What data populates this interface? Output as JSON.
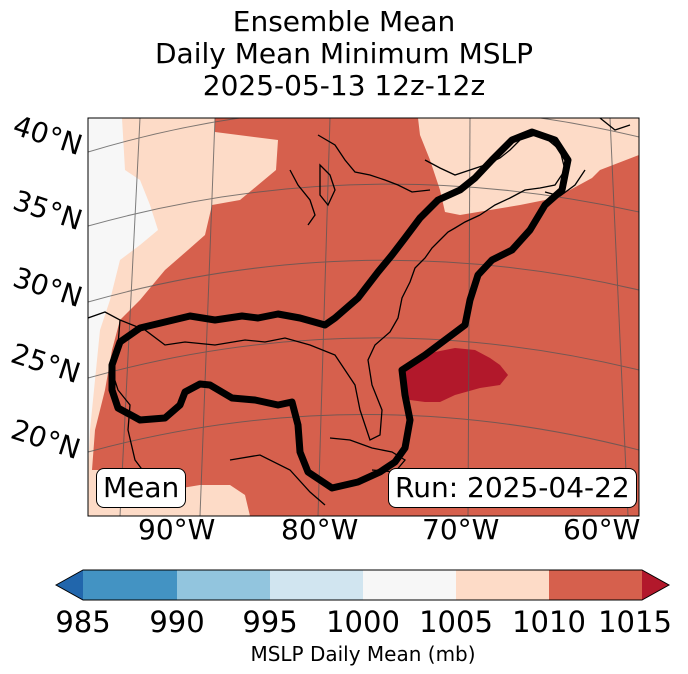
{
  "title": {
    "line1": "Ensemble Mean",
    "line2": "Daily Mean Minimum MSLP",
    "line3": "2025-05-13 12z-12z"
  },
  "map": {
    "lat_labels": [
      "40°N",
      "35°N",
      "30°N",
      "25°N",
      "20°N"
    ],
    "lon_labels": [
      "90°W",
      "80°W",
      "70°W",
      "60°W"
    ],
    "mean_box": "Mean",
    "run_box": "Run: 2025-04-22",
    "contour_color": "#000000"
  },
  "colorbar": {
    "ticks": [
      "985",
      "990",
      "995",
      "1000",
      "1005",
      "1010",
      "1015"
    ],
    "label": "MSLP Daily Mean (mb)",
    "colors": [
      "#2166ac",
      "#4393c3",
      "#92c5de",
      "#d1e5f0",
      "#f7f7f7",
      "#fddbc7",
      "#d6604d",
      "#b2182b"
    ]
  }
}
